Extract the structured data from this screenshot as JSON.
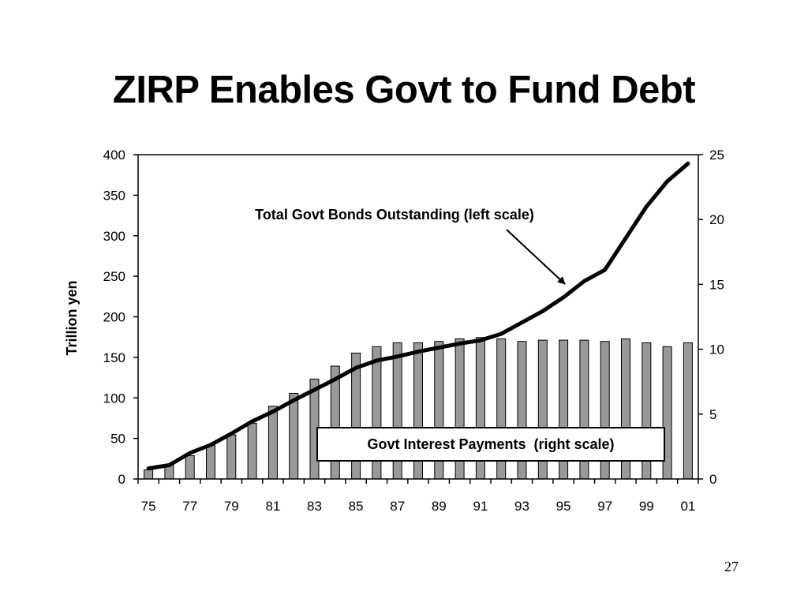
{
  "slide": {
    "title": "ZIRP Enables Govt to Fund Debt",
    "page_number": "27"
  },
  "chart_data": {
    "type": "bar+line",
    "title": "ZIRP Enables Govt to Fund Debt",
    "ylabel_left": "Trillion yen",
    "ylim_left": [
      0,
      400
    ],
    "yticks_left": [
      0,
      50,
      100,
      150,
      200,
      250,
      300,
      350,
      400
    ],
    "ylim_right": [
      0,
      25
    ],
    "yticks_right": [
      0,
      5,
      10,
      15,
      20,
      25
    ],
    "x": [
      "75",
      "76",
      "77",
      "78",
      "79",
      "80",
      "81",
      "82",
      "83",
      "84",
      "85",
      "86",
      "87",
      "88",
      "89",
      "90",
      "91",
      "92",
      "93",
      "94",
      "95",
      "96",
      "97",
      "98",
      "99",
      "00",
      "01"
    ],
    "x_tick_labels": [
      "75",
      "77",
      "79",
      "81",
      "83",
      "85",
      "87",
      "89",
      "91",
      "93",
      "95",
      "97",
      "99",
      "01"
    ],
    "grid": false,
    "series": [
      {
        "name": "Govt Interest Payments  (right scale)",
        "type": "bar",
        "axis": "right",
        "color": "#999999",
        "values": [
          0.7,
          1.1,
          1.8,
          2.6,
          3.4,
          4.3,
          5.6,
          6.6,
          7.7,
          8.7,
          9.7,
          10.2,
          10.5,
          10.5,
          10.6,
          10.8,
          10.9,
          10.8,
          10.6,
          10.7,
          10.7,
          10.7,
          10.6,
          10.8,
          10.5,
          10.2,
          10.5
        ]
      },
      {
        "name": "Total Govt Bonds Outstanding (left scale)",
        "type": "line",
        "axis": "left",
        "color": "#000000",
        "values": [
          13,
          17,
          32,
          42,
          56,
          71,
          83,
          97,
          110,
          123,
          137,
          146,
          151,
          157,
          162,
          167,
          171,
          179,
          193,
          207,
          224,
          244,
          258,
          297,
          336,
          367,
          389
        ]
      }
    ],
    "annotations": {
      "line_label": "Total Govt Bonds Outstanding (left scale)",
      "bar_label": "Govt Interest Payments  (right scale)"
    }
  }
}
